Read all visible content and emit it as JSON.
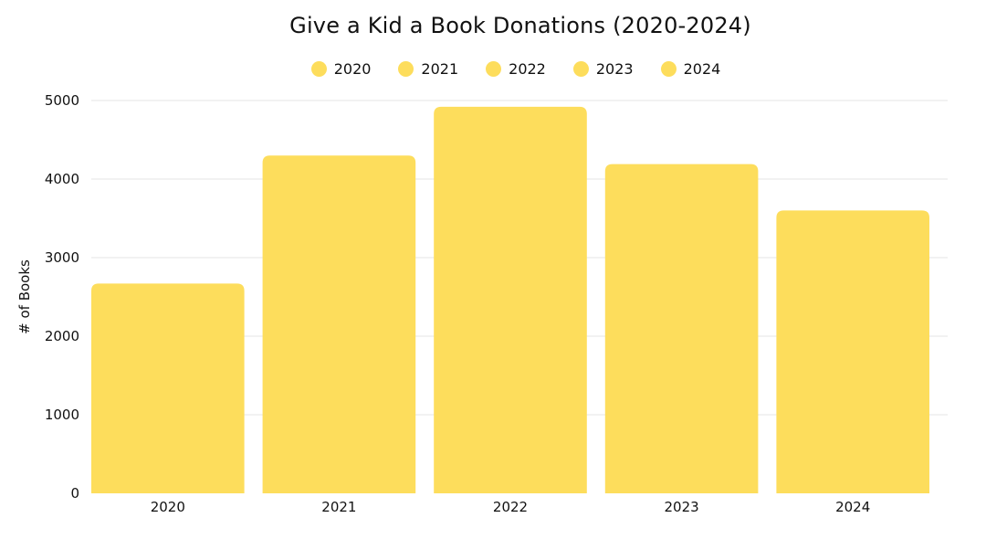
{
  "chart_data": {
    "type": "bar",
    "title": "Give a Kid a Book Donations (2020-2024)",
    "xlabel": "",
    "ylabel": "# of Books",
    "categories": [
      "2020",
      "2021",
      "2022",
      "2023",
      "2024"
    ],
    "values": [
      2670,
      4300,
      4920,
      4190,
      3600
    ],
    "ylim": [
      0,
      5000
    ],
    "yticks": [
      0,
      1000,
      2000,
      3000,
      4000,
      5000
    ],
    "grid": true,
    "legend_position": "top-center",
    "legend": [
      "2020",
      "2021",
      "2022",
      "2023",
      "2024"
    ],
    "colors": {
      "bar": "#FDDD5C",
      "grid": "#E6E6E6"
    }
  }
}
